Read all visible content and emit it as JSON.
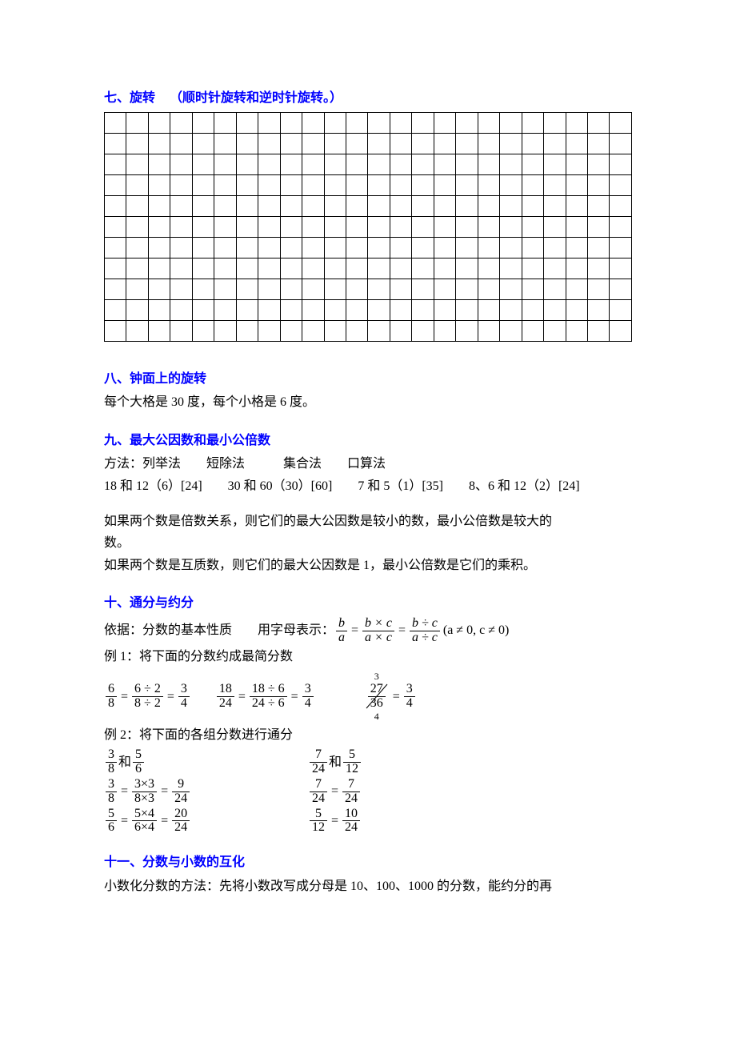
{
  "sections": {
    "s7": {
      "title": "七、旋转",
      "tail": "（顺时针旋转和逆时针旋转。）"
    },
    "s8": {
      "title": "八、钟面上的旋转",
      "line": "每个大格是 30 度，每个小格是 6 度。"
    },
    "s9": {
      "title": "九、最大公因数和最小公倍数",
      "methods": "方法：列举法　　短除法　　　集合法　　口算法",
      "examples": "18 和 12（6）[24]　　30 和 60（30）[60]　　7 和 5（1）[35]　　8、6 和 12（2）[24]",
      "rule1a": "如果两个数是倍数关系，则它们的最大公因数是较小的数，最小公倍数是较大的",
      "rule1b": "数。",
      "rule2": "如果两个数是互质数，则它们的最大公因数是 1，最小公倍数是它们的乘积。"
    },
    "s10": {
      "title": "十、通分与约分",
      "basis_pre": "依据：分数的基本性质　　用字母表示：",
      "prop_tail": "(a ≠ 0, c ≠ 0)",
      "ex1_label": "例 1：将下面的分数约成最简分数",
      "ex2_label": "例 2：将下面的各组分数进行通分"
    },
    "s11": {
      "title": "十一、分数与小数的互化",
      "line": "小数化分数的方法：先将小数改写成分母是 10、100、1000 的分数，能约分的再"
    }
  },
  "grid": {
    "rows": 11,
    "cols": 24
  },
  "fraction_property": {
    "terms": [
      {
        "n": "b",
        "d": "a"
      },
      {
        "n": "b × c",
        "d": "a × c"
      },
      {
        "n": "b ÷ c",
        "d": "a ÷ c"
      }
    ]
  },
  "ex1": {
    "a": {
      "steps": [
        {
          "n": "6",
          "d": "8"
        },
        {
          "n": "6 ÷ 2",
          "d": "8 ÷ 2"
        },
        {
          "n": "3",
          "d": "4"
        }
      ]
    },
    "b": {
      "steps": [
        {
          "n": "18",
          "d": "24"
        },
        {
          "n": "18 ÷ 6",
          "d": "24 ÷ 6"
        },
        {
          "n": "3",
          "d": "4"
        }
      ]
    },
    "c": {
      "orig": {
        "n": "27",
        "d": "36"
      },
      "cancel_top": "3",
      "cancel_bot": "4",
      "result": {
        "n": "3",
        "d": "4"
      }
    }
  },
  "ex2": {
    "left": {
      "pair_a": {
        "n": "3",
        "d": "8"
      },
      "pair_b": {
        "n": "5",
        "d": "6"
      },
      "joiner": "和",
      "step1": [
        {
          "n": "3",
          "d": "8"
        },
        {
          "n": "3×3",
          "d": "8×3"
        },
        {
          "n": "9",
          "d": "24"
        }
      ],
      "step2": [
        {
          "n": "5",
          "d": "6"
        },
        {
          "n": "5×4",
          "d": "6×4"
        },
        {
          "n": "20",
          "d": "24"
        }
      ]
    },
    "right": {
      "pair_a": {
        "n": "7",
        "d": "24"
      },
      "pair_b": {
        "n": "5",
        "d": "12"
      },
      "joiner": "和",
      "step1": [
        {
          "n": "7",
          "d": "24"
        },
        {
          "n": "7",
          "d": "24"
        }
      ],
      "step2": [
        {
          "n": "5",
          "d": "12"
        },
        {
          "n": "10",
          "d": "24"
        }
      ]
    }
  },
  "colors": {
    "heading": "#0000ff",
    "text": "#000000",
    "grid_border": "#000000",
    "bg": "#ffffff"
  }
}
